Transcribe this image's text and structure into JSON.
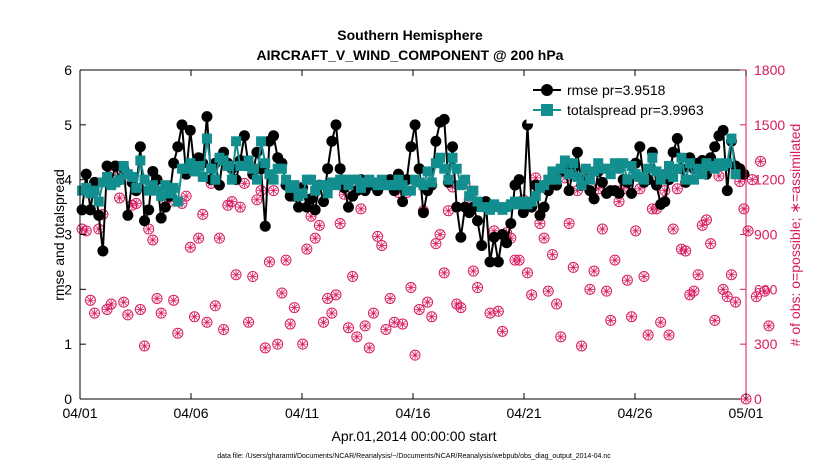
{
  "chart_data": {
    "type": "line",
    "title": "Southern Hemisphere",
    "subtitle": "AIRCRAFT_V_WIND_COMPONENT @ 200 hPa",
    "xlabel": "Apr.01,2014 00:00:00 start",
    "ylabel": "rmse and totalspread",
    "ylabel_right": "# of obs: o=possible; ∗=assimilated",
    "footnote": "data file: /Users/gharamti/Documents/NCAR/Reanalysis/~/Documents/NCAR/Reanalysis/webpub/obs_diag_output_2014-04.nc",
    "x_ticks": [
      "04/01",
      "04/06",
      "04/11",
      "04/16",
      "04/21",
      "04/26",
      "05/01"
    ],
    "xlim": [
      0,
      30
    ],
    "ylim": [
      0,
      6
    ],
    "y_ticks": [
      "0",
      "1",
      "2",
      "3",
      "4",
      "5",
      "6"
    ],
    "ylim_right": [
      0,
      1800
    ],
    "y_ticks_right": [
      "0",
      "300",
      "600",
      "900",
      "1200",
      "1500",
      "1800"
    ],
    "legend_position": "top-right",
    "colors": {
      "rmse": "#000000",
      "spread": "#128e8e",
      "obs": "#d81b60"
    },
    "series": [
      {
        "name": "rmse pr=3.9518",
        "axis": "left",
        "values": [
          3.45,
          4.1,
          3.45,
          3.95,
          3.35,
          2.7,
          4.25,
          3.95,
          4.25,
          4.0,
          4.2,
          3.35,
          3.95,
          3.8,
          4.6,
          3.25,
          3.45,
          4.15,
          4.0,
          3.3,
          3.5,
          3.7,
          4.3,
          4.6,
          5.0,
          4.1,
          4.9,
          4.2,
          4.4,
          4.3,
          5.15,
          4.0,
          4.3,
          3.9,
          4.5,
          4.3,
          4.2,
          4.0,
          4.35,
          4.8,
          4.25,
          4.1,
          4.5,
          4.2,
          3.15,
          4.7,
          4.8,
          4.4,
          4.3,
          3.9,
          3.7,
          3.7,
          3.5,
          3.85,
          3.5,
          3.65,
          3.45,
          3.9,
          3.6,
          4.2,
          4.7,
          5.0,
          4.2,
          3.85,
          3.5,
          3.7,
          3.8,
          4.0,
          3.8,
          3.9,
          3.9,
          3.8,
          3.9,
          3.95,
          4.0,
          3.8,
          4.1,
          3.6,
          4.0,
          4.6,
          5.0,
          4.2,
          3.4,
          3.8,
          3.9,
          4.7,
          5.05,
          5.1,
          3.95,
          4.6,
          3.5,
          2.95,
          3.5,
          3.4,
          3.5,
          3.25,
          2.8,
          3.6,
          2.5,
          2.95,
          2.5,
          3.0,
          2.85,
          3.2,
          3.9,
          4.0,
          3.4,
          5.0,
          3.5,
          3.9,
          3.35,
          3.5,
          3.8,
          4.0,
          3.9,
          4.15,
          4.25,
          3.8,
          4.2,
          4.5,
          3.9,
          4.0,
          3.8,
          3.65,
          4.15,
          3.95,
          3.75,
          3.8,
          3.8,
          3.75,
          4.0,
          3.95,
          3.75,
          4.3,
          4.6,
          3.95,
          4.0,
          4.5,
          3.9,
          3.55,
          3.6,
          4.0,
          4.5,
          4.75,
          4.2,
          3.95,
          4.4,
          4.2,
          4.3,
          4.35,
          4.1,
          4.4,
          4.6,
          4.8,
          4.9,
          3.8,
          4.7,
          4.25,
          4.2,
          4.1
        ]
      },
      {
        "name": "totalspread pr=3.9963",
        "axis": "left",
        "values": [
          3.8,
          3.85,
          3.75,
          3.8,
          3.6,
          3.95,
          4.05,
          3.9,
          3.95,
          4.0,
          4.25,
          4.1,
          4.05,
          3.85,
          4.35,
          4.0,
          3.8,
          3.9,
          3.8,
          3.7,
          3.9,
          3.75,
          3.85,
          3.6,
          4.2,
          4.2,
          4.3,
          4.15,
          4.25,
          4.05,
          4.75,
          4.2,
          4.0,
          4.4,
          4.35,
          4.25,
          4.0,
          4.7,
          4.25,
          4.25,
          4.35,
          4.2,
          4.0,
          4.7,
          4.3,
          4.1,
          4.0,
          4.2,
          4.2,
          4.0,
          3.85,
          3.9,
          3.7,
          3.75,
          4.0,
          4.0,
          3.8,
          3.9,
          3.9,
          3.75,
          3.95,
          3.9,
          4.0,
          4.0,
          3.9,
          4.0,
          4.0,
          3.85,
          3.95,
          4.0,
          3.95,
          3.9,
          4.0,
          3.9,
          3.9,
          3.9,
          4.0,
          3.9,
          3.8,
          3.8,
          4.0,
          3.95,
          3.9,
          4.15,
          3.95,
          4.3,
          4.4,
          4.2,
          4.0,
          4.4,
          4.2,
          3.9,
          4.0,
          3.7,
          3.8,
          3.6,
          3.5,
          3.5,
          3.45,
          3.55,
          3.5,
          3.45,
          3.5,
          3.55,
          3.6,
          3.55,
          3.6,
          3.55,
          3.6,
          3.7,
          3.85,
          3.9,
          4.0,
          4.15,
          4.0,
          4.2,
          4.35,
          4.1,
          4.3,
          4.05,
          3.9,
          4.2,
          4.0,
          4.15,
          4.3,
          4.2,
          4.2,
          4.1,
          4.3,
          4.2,
          4.3,
          4.0,
          4.25,
          4.1,
          4.05,
          4.0,
          4.2,
          4.4,
          4.15,
          4.0,
          4.1,
          4.25,
          4.05,
          4.2,
          4.4,
          4.0,
          4.3,
          4.0,
          4.2,
          4.1,
          4.3,
          4.25,
          4.2,
          4.3,
          4.25,
          4.3,
          4.75,
          4.1
        ]
      },
      {
        "name": "obs possible",
        "axis": "right",
        "marker": "circle",
        "values": [
          930,
          920,
          540,
          470,
          930,
          1010,
          490,
          520,
          1250,
          1100,
          530,
          460,
          1060,
          1070,
          490,
          290,
          930,
          870,
          550,
          470,
          1100,
          1080,
          540,
          360,
          1070,
          1110,
          830,
          450,
          880,
          1010,
          420,
          1180,
          510,
          880,
          380,
          1060,
          1080,
          680,
          1050,
          1180,
          420,
          670,
          1090,
          1140,
          280,
          750,
          1140,
          300,
          580,
          760,
          410,
          500,
          1160,
          300,
          820,
          1000,
          880,
          950,
          420,
          550,
          470,
          570,
          960,
          1120,
          390,
          670,
          340,
          1040,
          400,
          280,
          470,
          890,
          840,
          380,
          550,
          420,
          1130,
          410,
          1130,
          610,
          240,
          490,
          1030,
          530,
          450,
          850,
          900,
          690,
          1030,
          1160,
          520,
          500,
          1180,
          1090,
          700,
          610,
          1060,
          1050,
          470,
          920,
          480,
          370,
          910,
          880,
          760,
          760,
          1090,
          690,
          570,
          1210,
          960,
          880,
          590,
          790,
          520,
          340,
          1210,
          960,
          720,
          1140,
          290,
          1230,
          600,
          700,
          1150,
          930,
          590,
          430,
          760,
          1080,
          1150,
          650,
          450,
          920,
          1150,
          670,
          350,
          1040,
          1040,
          420,
          1140,
          350,
          930,
          1150,
          820,
          810,
          570,
          590,
          680,
          950,
          980,
          850,
          430,
          1220,
          600,
          560,
          680,
          530,
          1190,
          1040,
          920,
          1200,
          560,
          1300,
          590,
          400
        ]
      }
    ],
    "obs_last_value": 0
  }
}
